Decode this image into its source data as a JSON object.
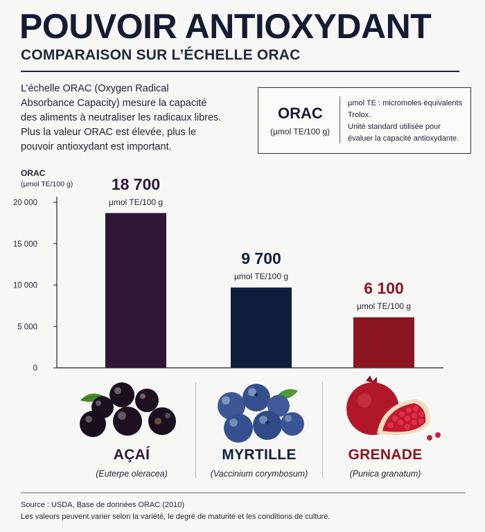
{
  "header": {
    "title": "POUVOIR ANTIOXYDANT",
    "subtitle": "COMPARAISON SUR L’ÉCHELLE ORAC"
  },
  "intro": "L’échelle ORAC (Oxygen Radical Absorbance Capacity) mesure la capacité des aliments à neutraliser les radicaux libres. Plus la valeur ORAC est élevée, plus le pouvoir antioxydant est important.",
  "info_box": {
    "label": "ORAC",
    "unit": "(µmol TE/100 g)",
    "note_1": "µmol TE : micromoles équivalents Trolox.",
    "note_2": "Unité standard utilisée pour évaluer la capacité antioxydante."
  },
  "chart_data": {
    "type": "bar",
    "ylabel": "ORAC",
    "yunit": "(µmol TE/100 g)",
    "ylim": [
      0,
      20000
    ],
    "yticks": [
      0,
      5000,
      10000,
      15000,
      20000
    ],
    "ytick_labels": [
      "0",
      "5 000",
      "10 000",
      "15 000",
      "20 000"
    ],
    "categories": [
      "AÇAÍ",
      "MYRTILLE",
      "GRENADE"
    ],
    "latin_names": [
      "(Euterpe oleracea)",
      "(Vaccinium corymbosum)",
      "(Punica granatum)"
    ],
    "values": [
      18700,
      9700,
      6100
    ],
    "value_labels": [
      "18 700",
      "9 700",
      "6 100"
    ],
    "value_unit": "µmol TE/100 g",
    "colors": [
      "#2f1836",
      "#0f1e3d",
      "#8c1620"
    ],
    "grid": false,
    "legend": "none"
  },
  "fruit_icons": [
    "acai-berries-icon",
    "blueberries-icon",
    "pomegranate-icon"
  ],
  "footer": {
    "source": "Source : USDA, Base de données ORAC (2010)",
    "note": "Les valeurs peuvent varier selon la variété, le degré de maturité et les conditions de culture."
  }
}
